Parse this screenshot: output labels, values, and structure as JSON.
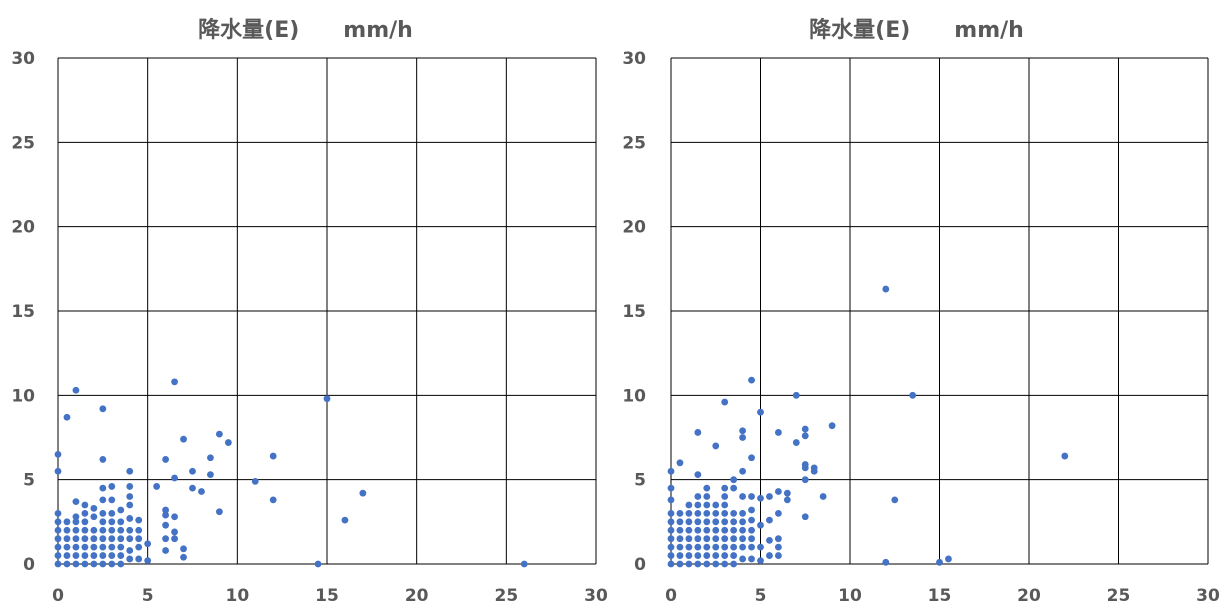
{
  "chart_data": [
    {
      "type": "scatter",
      "title": "降水量(E)　　mm/h",
      "xlabel": "",
      "ylabel": "",
      "xlim": [
        0,
        30
      ],
      "ylim": [
        0,
        30
      ],
      "xticks": [
        "0",
        "5",
        "10",
        "15",
        "20",
        "25",
        "30"
      ],
      "yticks": [
        "0",
        "5",
        "10",
        "15",
        "20",
        "25",
        "30"
      ],
      "grid": true,
      "marker_color": "#4472C4",
      "series": [
        {
          "points": [
            [
              0,
              0
            ],
            [
              0,
              0.5
            ],
            [
              0,
              1
            ],
            [
              0,
              1.5
            ],
            [
              0,
              2
            ],
            [
              0,
              2.5
            ],
            [
              0,
              3
            ],
            [
              0,
              5.5
            ],
            [
              0,
              6.5
            ],
            [
              0.5,
              0
            ],
            [
              0.5,
              0.5
            ],
            [
              0.5,
              1
            ],
            [
              0.5,
              1.5
            ],
            [
              0.5,
              2
            ],
            [
              0.5,
              2.5
            ],
            [
              0.5,
              8.7
            ],
            [
              1,
              0
            ],
            [
              1,
              0.5
            ],
            [
              1,
              1
            ],
            [
              1,
              1.5
            ],
            [
              1,
              2
            ],
            [
              1,
              2.5
            ],
            [
              1,
              2.8
            ],
            [
              1,
              3.7
            ],
            [
              1,
              10.3
            ],
            [
              1.5,
              0
            ],
            [
              1.5,
              0.5
            ],
            [
              1.5,
              1
            ],
            [
              1.5,
              1.5
            ],
            [
              1.5,
              2
            ],
            [
              1.5,
              2.5
            ],
            [
              1.5,
              3
            ],
            [
              1.5,
              3.5
            ],
            [
              2,
              0
            ],
            [
              2,
              0.5
            ],
            [
              2,
              1
            ],
            [
              2,
              1.5
            ],
            [
              2,
              2
            ],
            [
              2,
              2.8
            ],
            [
              2,
              3.3
            ],
            [
              2.5,
              0
            ],
            [
              2.5,
              0.5
            ],
            [
              2.5,
              1
            ],
            [
              2.5,
              1.5
            ],
            [
              2.5,
              2
            ],
            [
              2.5,
              2.5
            ],
            [
              2.5,
              3
            ],
            [
              2.5,
              3.8
            ],
            [
              2.5,
              4.5
            ],
            [
              2.5,
              6.2
            ],
            [
              2.5,
              9.2
            ],
            [
              3,
              0
            ],
            [
              3,
              0.5
            ],
            [
              3,
              1
            ],
            [
              3,
              1.5
            ],
            [
              3,
              2
            ],
            [
              3,
              2.5
            ],
            [
              3,
              3
            ],
            [
              3,
              3.8
            ],
            [
              3,
              4.6
            ],
            [
              3.5,
              0
            ],
            [
              3.5,
              0.5
            ],
            [
              3.5,
              1
            ],
            [
              3.5,
              1.5
            ],
            [
              3.5,
              2
            ],
            [
              3.5,
              2.5
            ],
            [
              3.5,
              3.2
            ],
            [
              4,
              0.3
            ],
            [
              4,
              0.8
            ],
            [
              4,
              1.5
            ],
            [
              4,
              2
            ],
            [
              4,
              2.7
            ],
            [
              4,
              3.5
            ],
            [
              4,
              4.6
            ],
            [
              4,
              4
            ],
            [
              4,
              5.5
            ],
            [
              4.5,
              0.3
            ],
            [
              4.5,
              1
            ],
            [
              4.5,
              1.5
            ],
            [
              4.5,
              2
            ],
            [
              4.5,
              2.6
            ],
            [
              5,
              0.2
            ],
            [
              5,
              1.2
            ],
            [
              5.5,
              4.6
            ],
            [
              6,
              0.8
            ],
            [
              6,
              1.5
            ],
            [
              6,
              2.3
            ],
            [
              6,
              2.9
            ],
            [
              6,
              3.2
            ],
            [
              6,
              6.2
            ],
            [
              6.5,
              1.5
            ],
            [
              6.5,
              1.9
            ],
            [
              6.5,
              2.8
            ],
            [
              6.5,
              5.1
            ],
            [
              6.5,
              10.8
            ],
            [
              7,
              0.4
            ],
            [
              7,
              0.9
            ],
            [
              7,
              7.4
            ],
            [
              7.5,
              4.5
            ],
            [
              7.5,
              5.5
            ],
            [
              8,
              4.3
            ],
            [
              8.5,
              5.3
            ],
            [
              8.5,
              6.3
            ],
            [
              9,
              3.1
            ],
            [
              9,
              7.7
            ],
            [
              9.5,
              7.2
            ],
            [
              11,
              4.9
            ],
            [
              12,
              3.8
            ],
            [
              12,
              6.4
            ],
            [
              14.5,
              0
            ],
            [
              15,
              9.8
            ],
            [
              16,
              2.6
            ],
            [
              17,
              4.2
            ],
            [
              26,
              0
            ]
          ]
        }
      ]
    },
    {
      "type": "scatter",
      "title": "降水量(E)　　mm/h",
      "xlabel": "",
      "ylabel": "",
      "xlim": [
        0,
        30
      ],
      "ylim": [
        0,
        30
      ],
      "xticks": [
        "0",
        "5",
        "10",
        "15",
        "20",
        "25",
        "30"
      ],
      "yticks": [
        "0",
        "5",
        "10",
        "15",
        "20",
        "25",
        "30"
      ],
      "grid": true,
      "marker_color": "#4472C4",
      "series": [
        {
          "points": [
            [
              0,
              0
            ],
            [
              0,
              0.5
            ],
            [
              0,
              1
            ],
            [
              0,
              1.5
            ],
            [
              0,
              2
            ],
            [
              0,
              2.5
            ],
            [
              0,
              3
            ],
            [
              0,
              3.8
            ],
            [
              0,
              4.5
            ],
            [
              0,
              5.5
            ],
            [
              0.5,
              0
            ],
            [
              0.5,
              0.5
            ],
            [
              0.5,
              1
            ],
            [
              0.5,
              1.5
            ],
            [
              0.5,
              2
            ],
            [
              0.5,
              2.5
            ],
            [
              0.5,
              3
            ],
            [
              0.5,
              6
            ],
            [
              1,
              0
            ],
            [
              1,
              0.5
            ],
            [
              1,
              1
            ],
            [
              1,
              1.5
            ],
            [
              1,
              2
            ],
            [
              1,
              2.5
            ],
            [
              1,
              3
            ],
            [
              1,
              3.5
            ],
            [
              1.5,
              0
            ],
            [
              1.5,
              0.5
            ],
            [
              1.5,
              1
            ],
            [
              1.5,
              1.5
            ],
            [
              1.5,
              2
            ],
            [
              1.5,
              2.5
            ],
            [
              1.5,
              3
            ],
            [
              1.5,
              3.5
            ],
            [
              1.5,
              4
            ],
            [
              1.5,
              5.3
            ],
            [
              1.5,
              7.8
            ],
            [
              2,
              0
            ],
            [
              2,
              0.5
            ],
            [
              2,
              1
            ],
            [
              2,
              1.5
            ],
            [
              2,
              2
            ],
            [
              2,
              2.5
            ],
            [
              2,
              3
            ],
            [
              2,
              3.5
            ],
            [
              2,
              4
            ],
            [
              2,
              4.5
            ],
            [
              2.5,
              0
            ],
            [
              2.5,
              0.5
            ],
            [
              2.5,
              1
            ],
            [
              2.5,
              1.5
            ],
            [
              2.5,
              2
            ],
            [
              2.5,
              2.5
            ],
            [
              2.5,
              3
            ],
            [
              2.5,
              3.5
            ],
            [
              2.5,
              7
            ],
            [
              3,
              0
            ],
            [
              3,
              0.5
            ],
            [
              3,
              1
            ],
            [
              3,
              1.5
            ],
            [
              3,
              2
            ],
            [
              3,
              2.5
            ],
            [
              3,
              3
            ],
            [
              3,
              3.5
            ],
            [
              3,
              4
            ],
            [
              3,
              4.5
            ],
            [
              3,
              9.6
            ],
            [
              3.5,
              0
            ],
            [
              3.5,
              0.5
            ],
            [
              3.5,
              1
            ],
            [
              3.5,
              1.5
            ],
            [
              3.5,
              2
            ],
            [
              3.5,
              2.5
            ],
            [
              3.5,
              3
            ],
            [
              3.5,
              4.5
            ],
            [
              3.5,
              5
            ],
            [
              4,
              0.3
            ],
            [
              4,
              1
            ],
            [
              4,
              1.5
            ],
            [
              4,
              2
            ],
            [
              4,
              2.5
            ],
            [
              4,
              3
            ],
            [
              4,
              4
            ],
            [
              4,
              5.5
            ],
            [
              4,
              7.5
            ],
            [
              4,
              7.9
            ],
            [
              4.5,
              0.3
            ],
            [
              4.5,
              1
            ],
            [
              4.5,
              1.5
            ],
            [
              4.5,
              2
            ],
            [
              4.5,
              2.6
            ],
            [
              4.5,
              3.2
            ],
            [
              4.5,
              4
            ],
            [
              4.5,
              6.3
            ],
            [
              4.5,
              10.9
            ],
            [
              5,
              0.2
            ],
            [
              5,
              1
            ],
            [
              5,
              2.3
            ],
            [
              5,
              3.9
            ],
            [
              5,
              9
            ],
            [
              5.5,
              0.5
            ],
            [
              5.5,
              1.4
            ],
            [
              5.5,
              2.6
            ],
            [
              5.5,
              4
            ],
            [
              6,
              0.5
            ],
            [
              6,
              1
            ],
            [
              6,
              1.5
            ],
            [
              6,
              3
            ],
            [
              6,
              4.3
            ],
            [
              6,
              7.8
            ],
            [
              6.5,
              3.8
            ],
            [
              6.5,
              4.2
            ],
            [
              7,
              7.2
            ],
            [
              7,
              10
            ],
            [
              7.5,
              2.8
            ],
            [
              7.5,
              5
            ],
            [
              7.5,
              5.7
            ],
            [
              7.5,
              5.9
            ],
            [
              7.5,
              7.6
            ],
            [
              7.5,
              8
            ],
            [
              8,
              5.5
            ],
            [
              8,
              5.7
            ],
            [
              8.5,
              4
            ],
            [
              9,
              8.2
            ],
            [
              12,
              0.1
            ],
            [
              12,
              16.3
            ],
            [
              12.5,
              3.8
            ],
            [
              13.5,
              10
            ],
            [
              15,
              0.1
            ],
            [
              15.5,
              0.3
            ],
            [
              22,
              6.4
            ]
          ]
        }
      ]
    }
  ]
}
